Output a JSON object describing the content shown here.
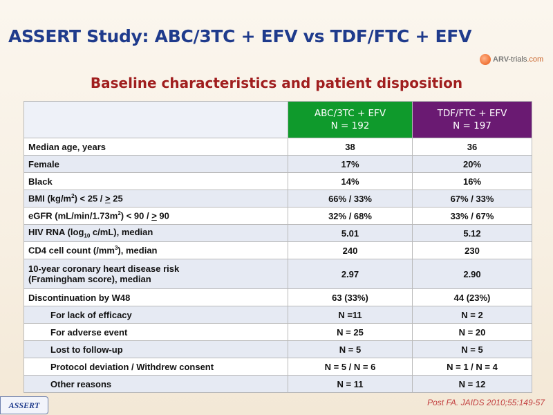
{
  "slide": {
    "title": "ASSERT Study: ABC/3TC + EFV vs TDF/FTC + EFV",
    "subtitle": "Baseline characteristics and patient disposition",
    "logo": {
      "arv": "ARV-",
      "trials": "trials",
      "com": ".com"
    },
    "footer_badge": "ASSERT",
    "citation": "Post FA. JAIDS 2010;55:149-57"
  },
  "table": {
    "col1": {
      "line1": "ABC/3TC + EFV",
      "line2": "N = 192",
      "color": "#0f9a2c"
    },
    "col2": {
      "line1": "TDF/FTC + EFV",
      "line2": "N = 197",
      "color": "#6a1a72"
    },
    "rows": [
      {
        "label": "Median age, years",
        "v1": "38",
        "v2": "36"
      },
      {
        "label": "Female",
        "v1": "17%",
        "v2": "20%"
      },
      {
        "label": "Black",
        "v1": "14%",
        "v2": "16%"
      },
      {
        "label_a": "BMI (kg/m",
        "sup": "2",
        "label_b": ") < 25 / ",
        "ul": ">",
        "label_c": " 25",
        "v1": "66% / 33%",
        "v2": "67% / 33%"
      },
      {
        "label_a": "eGFR (mL/min/1.73m",
        "sup": "2",
        "label_b": ") < 90 / ",
        "ul": ">",
        "label_c": " 90",
        "v1": "32% / 68%",
        "v2": "33% / 67%"
      },
      {
        "label_a": "HIV RNA (log",
        "sub": "10",
        "label_b": " c/mL), median",
        "v1": "5.01",
        "v2": "5.12"
      },
      {
        "label_a": "CD4 cell count (/mm",
        "sup": "3",
        "label_b": "), median",
        "v1": "240",
        "v2": "230"
      },
      {
        "line1": "10-year coronary heart disease risk",
        "line2": "(Framingham score), median",
        "v1": "2.97",
        "v2": "2.90"
      },
      {
        "label": "Discontinuation by W48",
        "v1": "63 (33%)",
        "v2": "44 (23%)"
      },
      {
        "label": "For lack of efficacy",
        "v1": "N =11",
        "v2": "N = 2"
      },
      {
        "label": "For adverse event",
        "v1": "N = 25",
        "v2": "N = 20"
      },
      {
        "label": "Lost to follow-up",
        "v1": "N = 5",
        "v2": "N = 5"
      },
      {
        "label": "Protocol deviation / Withdrew consent",
        "v1": "N = 5 / N = 6",
        "v2": "N = 1 / N = 4"
      },
      {
        "label": "Other reasons",
        "v1": "N = 11",
        "v2": "N = 12"
      }
    ]
  }
}
